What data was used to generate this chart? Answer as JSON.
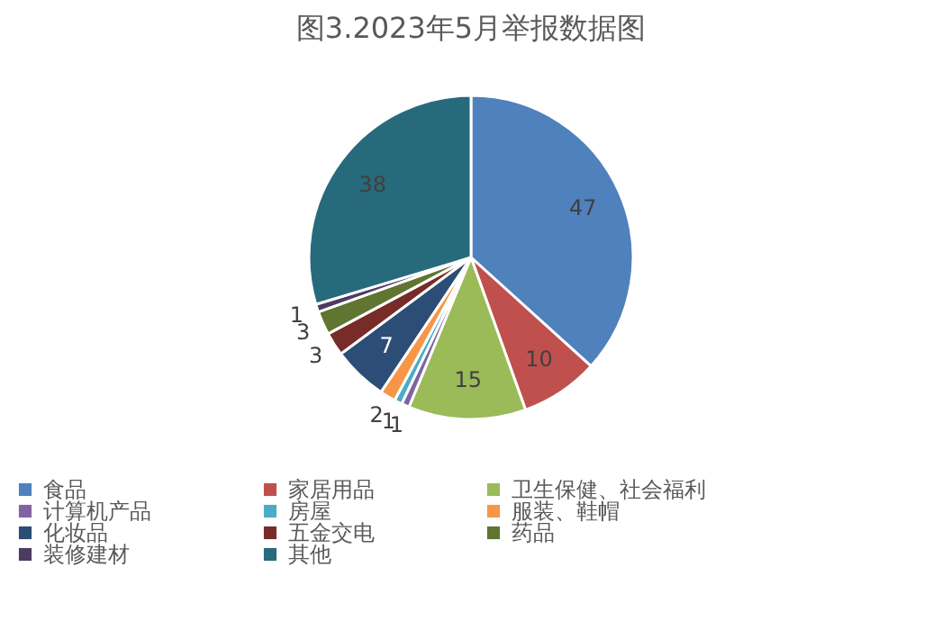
{
  "chart_data": {
    "type": "pie",
    "title": "图3.2023年5月举报数据图",
    "categories": [
      "食品",
      "家居用品",
      "卫生保健、社会福利",
      "计算机产品",
      "房屋",
      "服装、鞋帽",
      "化妆品",
      "五金交电",
      "药品",
      "装修建材",
      "其他"
    ],
    "values": [
      47,
      10,
      15,
      1,
      1,
      2,
      7,
      3,
      3,
      1,
      38
    ],
    "colors": [
      "#4f81bd",
      "#c0504d",
      "#9bbb59",
      "#8064a2",
      "#4bacc6",
      "#f79646",
      "#2c4d75",
      "#772c2a",
      "#5f7530",
      "#4d3b62",
      "#276a7c"
    ],
    "data_labels": true,
    "legend": "bottom"
  }
}
